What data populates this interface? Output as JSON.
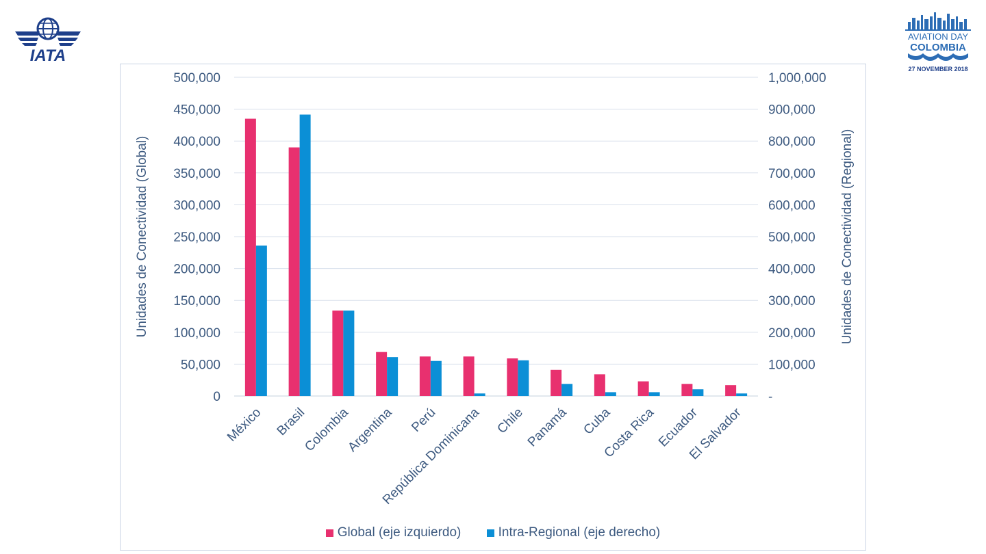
{
  "logos": {
    "iata_text": "IATA",
    "aviation_day": "AVIATION DAY",
    "colombia": "COLOMBIA",
    "date": "27 NOVEMBER 2018"
  },
  "colors": {
    "global": "#e8306f",
    "regional": "#0b8fd6",
    "axis_text": "#3d5a80",
    "grid": "#d7dfeb",
    "iata_blue": "#1e3f8a",
    "aviation_blue": "#2d6db5"
  },
  "chart_data": {
    "type": "bar",
    "categories": [
      "México",
      "Brasil",
      "Colombia",
      "Argentina",
      "Perú",
      "República Dominicana",
      "Chile",
      "Panamá",
      "Cuba",
      "Costa Rica",
      "Ecuador",
      "El Salvador"
    ],
    "series": [
      {
        "name": "Global (eje izquierdo)",
        "axis": "left",
        "values": [
          435000,
          390000,
          134000,
          69000,
          62000,
          62000,
          59000,
          41000,
          34000,
          23000,
          19000,
          17000
        ]
      },
      {
        "name": "Intra-Regional (eje derecho)",
        "axis": "right",
        "values": [
          472000,
          883000,
          268000,
          122000,
          110000,
          8000,
          112000,
          38000,
          12000,
          12000,
          21000,
          8000
        ]
      }
    ],
    "ylabel": "Unidades de Conectividad (Global)",
    "y2label": "Unidades de Conectividad (Regional)",
    "ylim": [
      0,
      500000
    ],
    "y2lim": [
      0,
      1000000
    ],
    "yticks": [
      "0",
      "50,000",
      "100,000",
      "150,000",
      "200,000",
      "250,000",
      "300,000",
      "350,000",
      "400,000",
      "450,000",
      "500,000"
    ],
    "y2ticks": [
      "-",
      "100,000",
      "200,000",
      "300,000",
      "400,000",
      "500,000",
      "600,000",
      "700,000",
      "800,000",
      "900,000",
      "1,000,000"
    ],
    "grid": true,
    "legend_position": "bottom"
  }
}
